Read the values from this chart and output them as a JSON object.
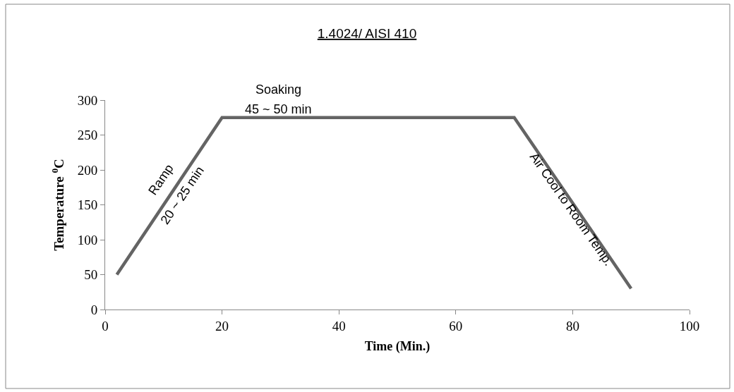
{
  "chart_data": {
    "type": "line",
    "title": "1.4024/ AISI 410",
    "xlabel": "Time (Min.)",
    "ylabel": "Temperature $^{0}$C",
    "x": [
      2,
      20,
      70,
      90
    ],
    "series": [
      {
        "color": "#646464",
        "values": [
          50,
          275,
          275,
          30
        ]
      }
    ],
    "xlim": [
      0,
      100
    ],
    "xticks": [
      0,
      20,
      40,
      60,
      80,
      100
    ],
    "ylim": [
      0,
      300
    ],
    "yticks": [
      0,
      50,
      100,
      150,
      200,
      250,
      300
    ],
    "marker": "none",
    "line_style": "solid",
    "annotations": [
      "Ramp",
      "20 ~ 25 min",
      "Soaking",
      "45 ~ 50 min",
      "Air Cool to Room Temp."
    ]
  }
}
